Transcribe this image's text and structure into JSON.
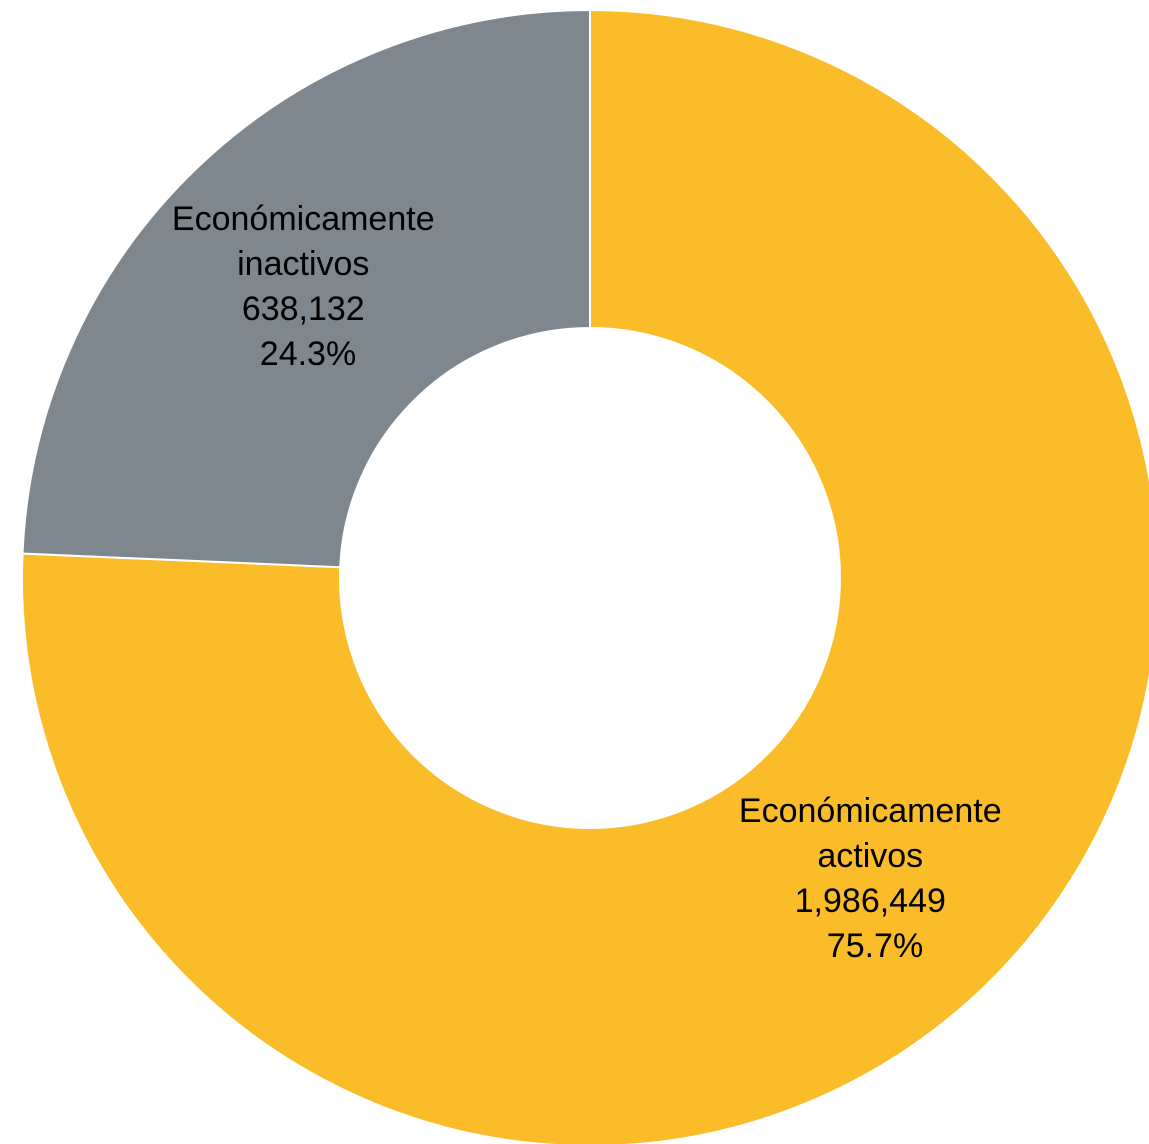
{
  "chart_data": {
    "type": "pie",
    "variant": "donut",
    "title": "",
    "legend": "none",
    "slices": [
      {
        "name": "Económicamente activos",
        "label_lines": [
          "Económicamente",
          "activos"
        ],
        "value": 1986449,
        "value_label": "1,986,449",
        "percent": 75.7,
        "percent_label": "75.7%",
        "color": "#FBBC2A"
      },
      {
        "name": "Económicamente inactivos",
        "label_lines": [
          "Económicamente",
          "inactivos"
        ],
        "value": 638132,
        "value_label": "638,132",
        "percent": 24.3,
        "percent_label": "24.3%",
        "color": "#7D878D"
      }
    ]
  }
}
